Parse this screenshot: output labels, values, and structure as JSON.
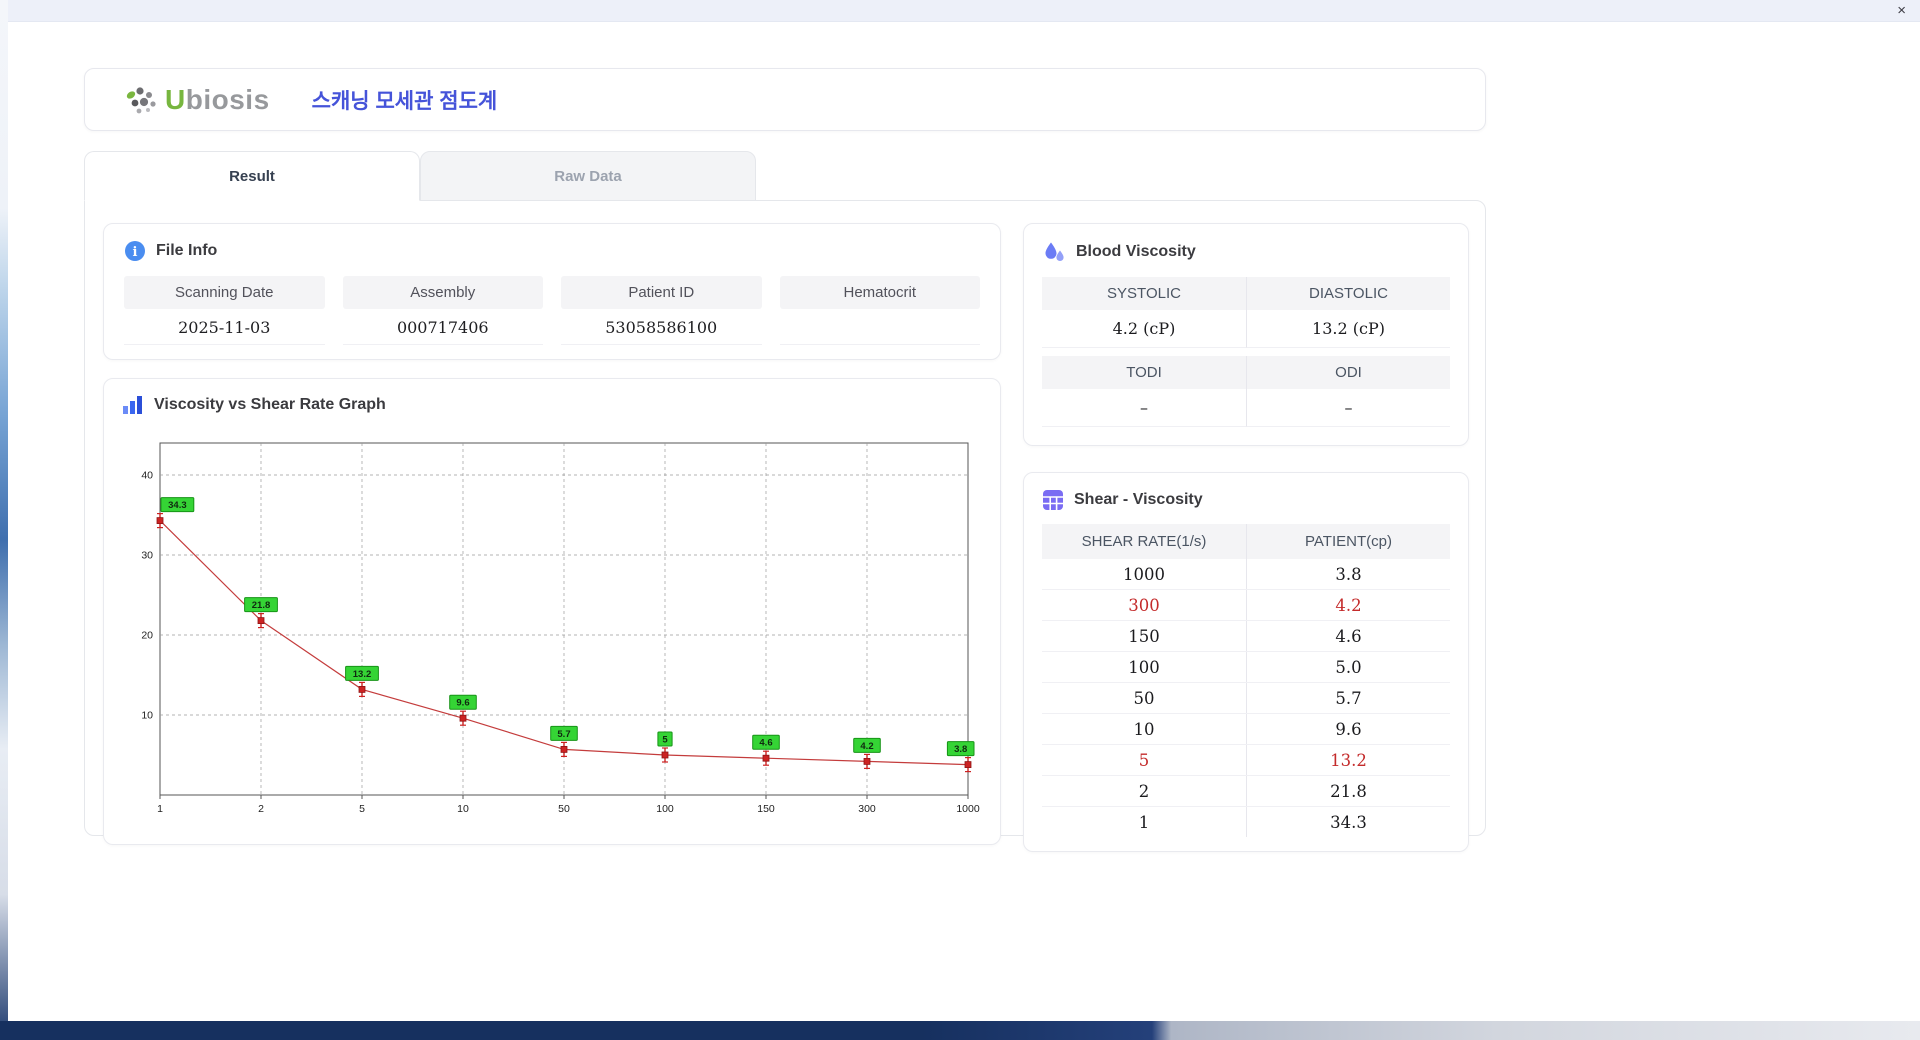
{
  "window": {
    "close_label": "×"
  },
  "header": {
    "logo_first_letter": "U",
    "logo_rest": "biosis",
    "title": "스캐닝 모세관 점도계"
  },
  "tabs": [
    {
      "label": "Result",
      "active": true
    },
    {
      "label": "Raw Data",
      "active": false
    }
  ],
  "file_info": {
    "title": "File Info",
    "fields": [
      {
        "label": "Scanning Date",
        "value": "2025-11-03"
      },
      {
        "label": "Assembly",
        "value": "000717406"
      },
      {
        "label": "Patient ID",
        "value": "53058586100"
      },
      {
        "label": "Hematocrit",
        "value": ""
      }
    ]
  },
  "blood_viscosity": {
    "title": "Blood Viscosity",
    "rows": [
      {
        "headers": [
          "SYSTOLIC",
          "DIASTOLIC"
        ],
        "values": [
          "4.2 (cP)",
          "13.2 (cP)"
        ]
      },
      {
        "headers": [
          "TODI",
          "ODI"
        ],
        "values": [
          "–",
          "–"
        ]
      }
    ]
  },
  "graph": {
    "title": "Viscosity vs Shear Rate Graph"
  },
  "chart_data": {
    "type": "line",
    "title": "Viscosity vs Shear Rate Graph",
    "x_ticks": [
      "1",
      "2",
      "5",
      "10",
      "50",
      "100",
      "150",
      "300",
      "1000"
    ],
    "x": [
      1,
      2,
      5,
      10,
      50,
      100,
      150,
      300,
      1000
    ],
    "values": [
      34.3,
      21.8,
      13.2,
      9.6,
      5.7,
      5.0,
      4.6,
      4.2,
      3.8
    ],
    "point_labels": [
      "34.3",
      "21.8",
      "13.2",
      "9.6",
      "5.7",
      "5",
      "4.6",
      "4.2",
      "3.8"
    ],
    "y_ticks": [
      10,
      20,
      30,
      40
    ],
    "ylim": [
      0,
      44
    ],
    "xlabel": "",
    "ylabel": "",
    "grid": true,
    "line_color": "#c43c3c",
    "marker_color": "#cc2222",
    "marker_stroke": "#8e1414",
    "label_bg": "#35d435",
    "label_border": "#169416",
    "label_text_color": "#102a10"
  },
  "shear_viscosity": {
    "title": "Shear - Viscosity",
    "columns": [
      "SHEAR RATE(1/s)",
      "PATIENT(cp)"
    ],
    "rows": [
      {
        "rate": "1000",
        "value": "3.8",
        "highlight": false
      },
      {
        "rate": "300",
        "value": "4.2",
        "highlight": true
      },
      {
        "rate": "150",
        "value": "4.6",
        "highlight": false
      },
      {
        "rate": "100",
        "value": "5.0",
        "highlight": false
      },
      {
        "rate": "50",
        "value": "5.7",
        "highlight": false
      },
      {
        "rate": "10",
        "value": "9.6",
        "highlight": false
      },
      {
        "rate": "5",
        "value": "13.2",
        "highlight": true
      },
      {
        "rate": "2",
        "value": "21.8",
        "highlight": false
      },
      {
        "rate": "1",
        "value": "34.3",
        "highlight": false
      }
    ]
  },
  "icons": {
    "info-icon": "blue circle with i",
    "droplets-icon": "two indigo water drops",
    "bar-chart-icon": "three ascending blue bars",
    "table-icon": "purple grid table",
    "close-icon": "×",
    "logo-dots-icon": "gray and green dot cluster"
  },
  "colors": {
    "accent_blue": "#4553d9",
    "highlight_red": "#c42b2b",
    "label_green": "#35d435",
    "header_gray": "#f4f4f6"
  }
}
